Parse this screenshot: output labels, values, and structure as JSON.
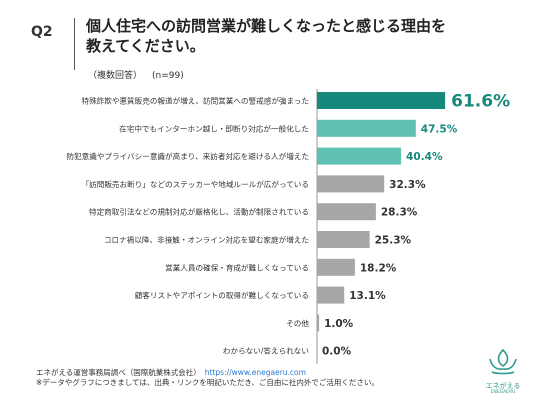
{
  "question_label": "Q2",
  "title_lines": [
    "個人住宅への訪問営業が難しくなったと感じる理由を",
    "教えてください。"
  ],
  "subtitle": {
    "answer_type": "（複数回答）",
    "sample": "(n=99)"
  },
  "chart_data": {
    "type": "bar",
    "orientation": "horizontal",
    "categories": [
      "特殊詐欺や悪質販売の報道が増え、訪問営業への警戒感が強まった",
      "在宅中でもインターホン越し・即断り対応が一般化した",
      "防犯意識やプライバシー意識が高まり、来訪者対応を避ける人が増えた",
      "「訪問販売お断り」などのステッカーや地域ルールが広がっている",
      "特定商取引法などの規制対応が厳格化し、活動が制限されている",
      "コロナ禍以降、非接触・オンライン対応を望む家庭が増えた",
      "営業人員の確保・育成が難しくなっている",
      "顧客リストやアポイントの取得が難しくなっている",
      "その他",
      "わからない/答えられない"
    ],
    "values": [
      61.6,
      47.5,
      40.4,
      32.3,
      28.3,
      25.3,
      18.2,
      13.1,
      1.0,
      0.0
    ],
    "value_labels": [
      "61.6%",
      "47.5%",
      "40.4%",
      "32.3%",
      "28.3%",
      "25.3%",
      "18.2%",
      "13.1%",
      "1.0%",
      "0.0%"
    ],
    "xlim": [
      0,
      100
    ],
    "bar_colors": [
      "#17897c",
      "#5fc0b4",
      "#5fc0b4",
      "#a6a6a6",
      "#a6a6a6",
      "#a6a6a6",
      "#a6a6a6",
      "#a6a6a6",
      "#a6a6a6",
      "#a6a6a6"
    ],
    "label_colors": [
      "#17897c",
      "#17897c",
      "#17897c",
      "#333333",
      "#333333",
      "#333333",
      "#333333",
      "#333333",
      "#333333",
      "#333333"
    ]
  },
  "footer": {
    "source": "エネがえる運営事務局調べ（国際航業株式会社）",
    "url": "https://www.enegaeru.com",
    "note": "※データやグラフにつきましては、出典・リンクを明記いただき、ご自由に社内外でご活用ください。"
  },
  "logo": {
    "name": "エネがえる",
    "sub": "ENEGAERU",
    "color": "#2f9a8e"
  }
}
